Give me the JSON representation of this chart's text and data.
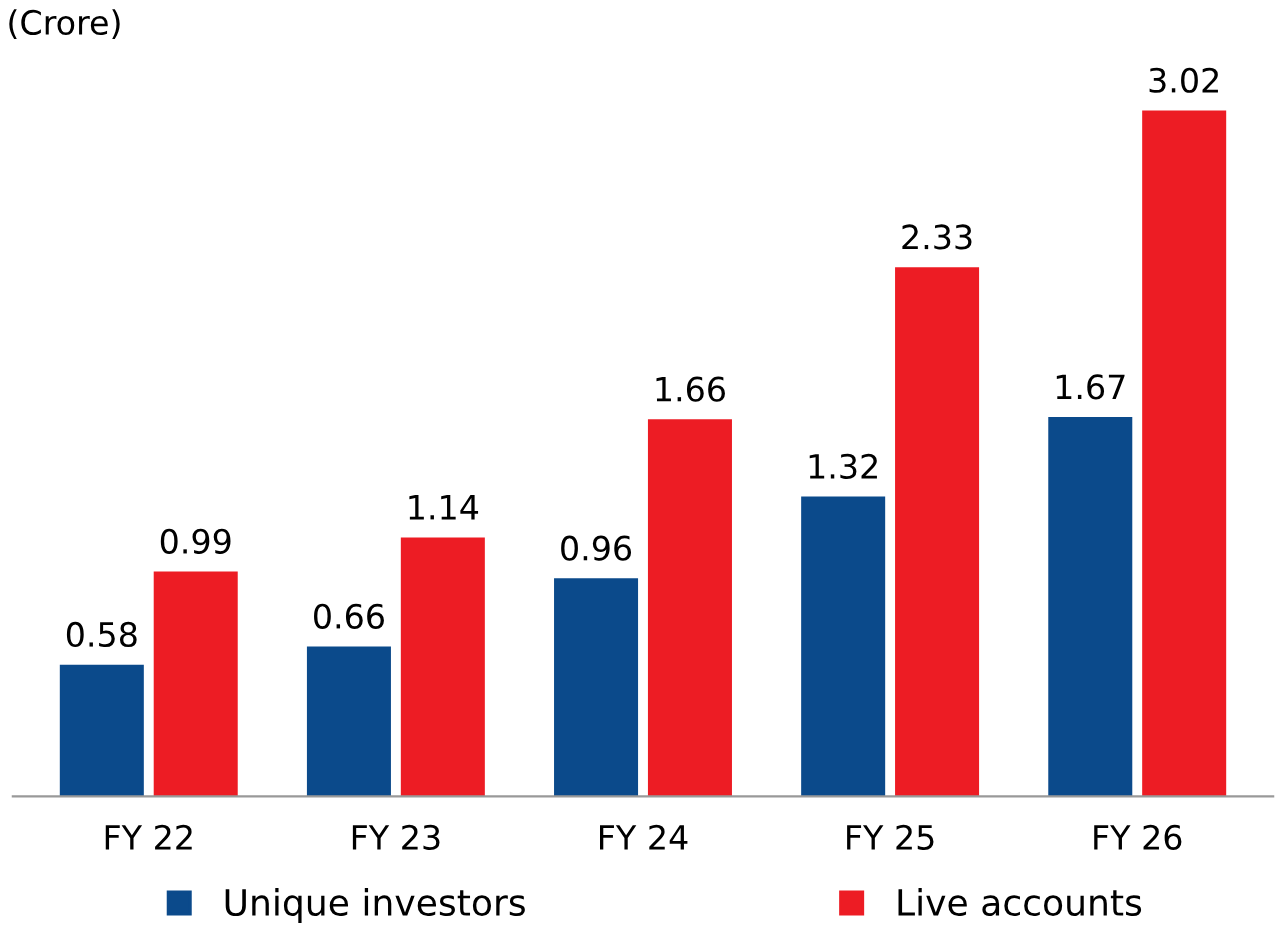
{
  "chart_data": {
    "type": "bar",
    "annotations": [
      "(Crore)"
    ],
    "categories": [
      "FY 22",
      "FY 23",
      "FY 24",
      "FY 25",
      "FY 26"
    ],
    "series": [
      {
        "name": "Unique investors",
        "color": "#0b4a8b",
        "values": [
          0.58,
          0.66,
          0.96,
          1.32,
          1.67
        ]
      },
      {
        "name": "Live accounts",
        "color": "#ed1c24",
        "values": [
          0.99,
          1.14,
          1.66,
          2.33,
          3.02
        ]
      }
    ],
    "data_labels": true,
    "legend": "bottom",
    "grid": false
  }
}
